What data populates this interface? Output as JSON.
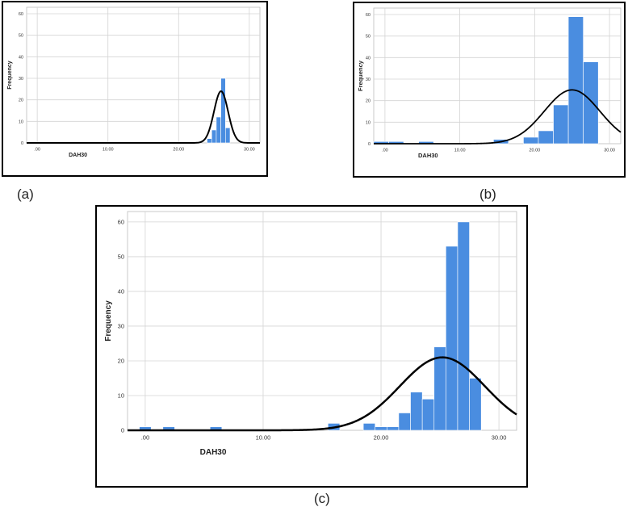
{
  "chart_data": [
    {
      "type": "bar",
      "panel_label": "(a)",
      "xlabel": "DAH30",
      "ylabel": "Frequency",
      "xlim": [
        -1.5,
        31.5
      ],
      "ylim": [
        0,
        63
      ],
      "xticks": [
        0,
        10,
        20,
        30
      ],
      "xtick_labels": [
        ".00",
        "10.00",
        "20.00",
        "30.00"
      ],
      "yticks": [
        0,
        10,
        20,
        30,
        40,
        50,
        60
      ],
      "ytick_labels": [
        "0",
        "10",
        "20",
        "30",
        "40",
        "50",
        "60"
      ],
      "bin_width": 0.65,
      "bins": [
        {
          "x": 24.35,
          "count": 2
        },
        {
          "x": 25.0,
          "count": 6
        },
        {
          "x": 25.65,
          "count": 12
        },
        {
          "x": 26.3,
          "count": 30
        },
        {
          "x": 26.95,
          "count": 7
        }
      ],
      "normal_curve": {
        "mean": 26.0,
        "sd": 1.0,
        "peak": 24
      },
      "grid": true,
      "color": "#4a8de0"
    },
    {
      "type": "bar",
      "panel_label": "(b)",
      "xlabel": "DAH30",
      "ylabel": "Frequency",
      "xlim": [
        -1.5,
        31.5
      ],
      "ylim": [
        0,
        63
      ],
      "xticks": [
        0,
        10,
        20,
        30
      ],
      "xtick_labels": [
        ".00",
        "10.00",
        "20.00",
        "30.00"
      ],
      "yticks": [
        0,
        10,
        20,
        30,
        40,
        50,
        60
      ],
      "ytick_labels": [
        "0",
        "10",
        "20",
        "30",
        "40",
        "50",
        "60"
      ],
      "bin_width": 2.0,
      "bins": [
        {
          "x": -0.5,
          "count": 1
        },
        {
          "x": 1.5,
          "count": 1
        },
        {
          "x": 5.5,
          "count": 1
        },
        {
          "x": 15.5,
          "count": 2
        },
        {
          "x": 19.5,
          "count": 3
        },
        {
          "x": 21.5,
          "count": 6
        },
        {
          "x": 23.5,
          "count": 18
        },
        {
          "x": 25.5,
          "count": 59
        },
        {
          "x": 27.5,
          "count": 38
        }
      ],
      "normal_curve": {
        "mean": 25.0,
        "sd": 3.7,
        "peak": 25
      },
      "grid": true,
      "color": "#4a8de0"
    },
    {
      "type": "bar",
      "panel_label": "(c)",
      "xlabel": "DAH30",
      "ylabel": "Frequency",
      "xlim": [
        -1.5,
        31.5
      ],
      "ylim": [
        0,
        63
      ],
      "xticks": [
        0,
        10,
        20,
        30
      ],
      "xtick_labels": [
        ".00",
        "10.00",
        "20.00",
        "30.00"
      ],
      "yticks": [
        0,
        10,
        20,
        30,
        40,
        50,
        60
      ],
      "ytick_labels": [
        "0",
        "10",
        "20",
        "30",
        "40",
        "50",
        "60"
      ],
      "bin_width": 1.0,
      "bins": [
        {
          "x": 0.0,
          "count": 1
        },
        {
          "x": 2.0,
          "count": 1
        },
        {
          "x": 6.0,
          "count": 1
        },
        {
          "x": 16.0,
          "count": 2
        },
        {
          "x": 19.0,
          "count": 2
        },
        {
          "x": 20.0,
          "count": 1
        },
        {
          "x": 21.0,
          "count": 1
        },
        {
          "x": 22.0,
          "count": 5
        },
        {
          "x": 23.0,
          "count": 11
        },
        {
          "x": 24.0,
          "count": 9
        },
        {
          "x": 25.0,
          "count": 24
        },
        {
          "x": 26.0,
          "count": 53
        },
        {
          "x": 27.0,
          "count": 60
        },
        {
          "x": 28.0,
          "count": 15
        }
      ],
      "normal_curve": {
        "mean": 25.2,
        "sd": 3.6,
        "peak": 21
      },
      "grid": true,
      "color": "#4a8de0"
    }
  ]
}
